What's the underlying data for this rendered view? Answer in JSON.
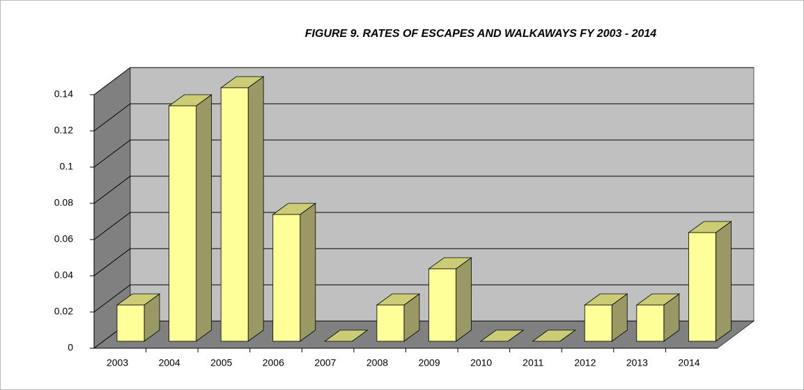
{
  "chart_data": {
    "type": "bar3d",
    "title": "FIGURE 9.  RATES OF ESCAPES AND WALKAWAYS  FY 2003 - 2014",
    "categories": [
      "2003",
      "2004",
      "2005",
      "2006",
      "2007",
      "2008",
      "2009",
      "2010",
      "2011",
      "2012",
      "2013",
      "2014"
    ],
    "values": [
      0.02,
      0.13,
      0.14,
      0.07,
      0,
      0.02,
      0.04,
      0,
      0,
      0.02,
      0.02,
      0.06
    ],
    "color": "#ffff99",
    "ylim": [
      0,
      0.14
    ],
    "yticks": [
      0,
      0.02,
      0.04,
      0.06,
      0.08,
      0.1,
      0.12,
      0.14
    ],
    "grid": true
  }
}
